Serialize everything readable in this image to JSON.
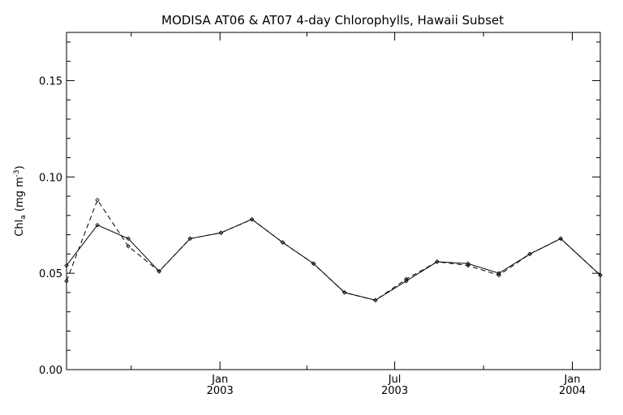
{
  "chart_data": {
    "type": "line",
    "title": "MODISA AT06 & AT07 4-day Chlorophylls, Hawaii Subset",
    "ylabel": {
      "main": "Chl",
      "sub": "a",
      "unit_open": " (mg m",
      "unit_sup": "-3",
      "unit_close": ")"
    },
    "xlim": [
      "2002-07-26",
      "2004-01-30"
    ],
    "ylim": [
      0,
      0.175
    ],
    "yticks": [
      {
        "value": 0.0,
        "label": "0.00"
      },
      {
        "value": 0.05,
        "label": "0.05"
      },
      {
        "value": 0.1,
        "label": "0.10"
      },
      {
        "value": 0.15,
        "label": "0.15"
      }
    ],
    "xticks": [
      {
        "date": "2003-01-01",
        "line1": "Jan",
        "line2": "2003"
      },
      {
        "date": "2003-07-01",
        "line1": "Jul",
        "line2": "2003"
      },
      {
        "date": "2004-01-01",
        "line1": "Jan",
        "line2": "2004"
      }
    ],
    "grid": false,
    "series": [
      {
        "style": "solid",
        "x": [
          "2002-07-26",
          "2002-08-27",
          "2002-09-28",
          "2002-10-30",
          "2002-12-01",
          "2003-01-02",
          "2003-02-03",
          "2003-03-07",
          "2003-04-08",
          "2003-05-10",
          "2003-06-11",
          "2003-07-13",
          "2003-08-14",
          "2003-09-15",
          "2003-10-17",
          "2003-11-18",
          "2003-12-20",
          "2004-01-30"
        ],
        "y": [
          0.054,
          0.075,
          0.068,
          0.051,
          0.068,
          0.071,
          0.078,
          0.066,
          0.055,
          0.04,
          0.036,
          0.046,
          0.056,
          0.055,
          0.05,
          0.06,
          0.068,
          0.049
        ]
      },
      {
        "style": "dashed",
        "x": [
          "2002-07-26",
          "2002-08-27",
          "2002-09-28",
          "2002-10-30",
          "2002-12-01",
          "2003-01-02",
          "2003-02-03",
          "2003-03-07",
          "2003-04-08",
          "2003-05-10",
          "2003-06-11",
          "2003-07-13",
          "2003-08-14",
          "2003-09-15",
          "2003-10-17",
          "2003-11-18",
          "2003-12-20",
          "2004-01-30"
        ],
        "y": [
          0.046,
          0.088,
          0.064,
          0.051,
          0.068,
          0.071,
          0.078,
          0.066,
          0.055,
          0.04,
          0.036,
          0.047,
          0.056,
          0.054,
          0.049,
          0.06,
          0.068,
          0.049
        ]
      }
    ]
  }
}
